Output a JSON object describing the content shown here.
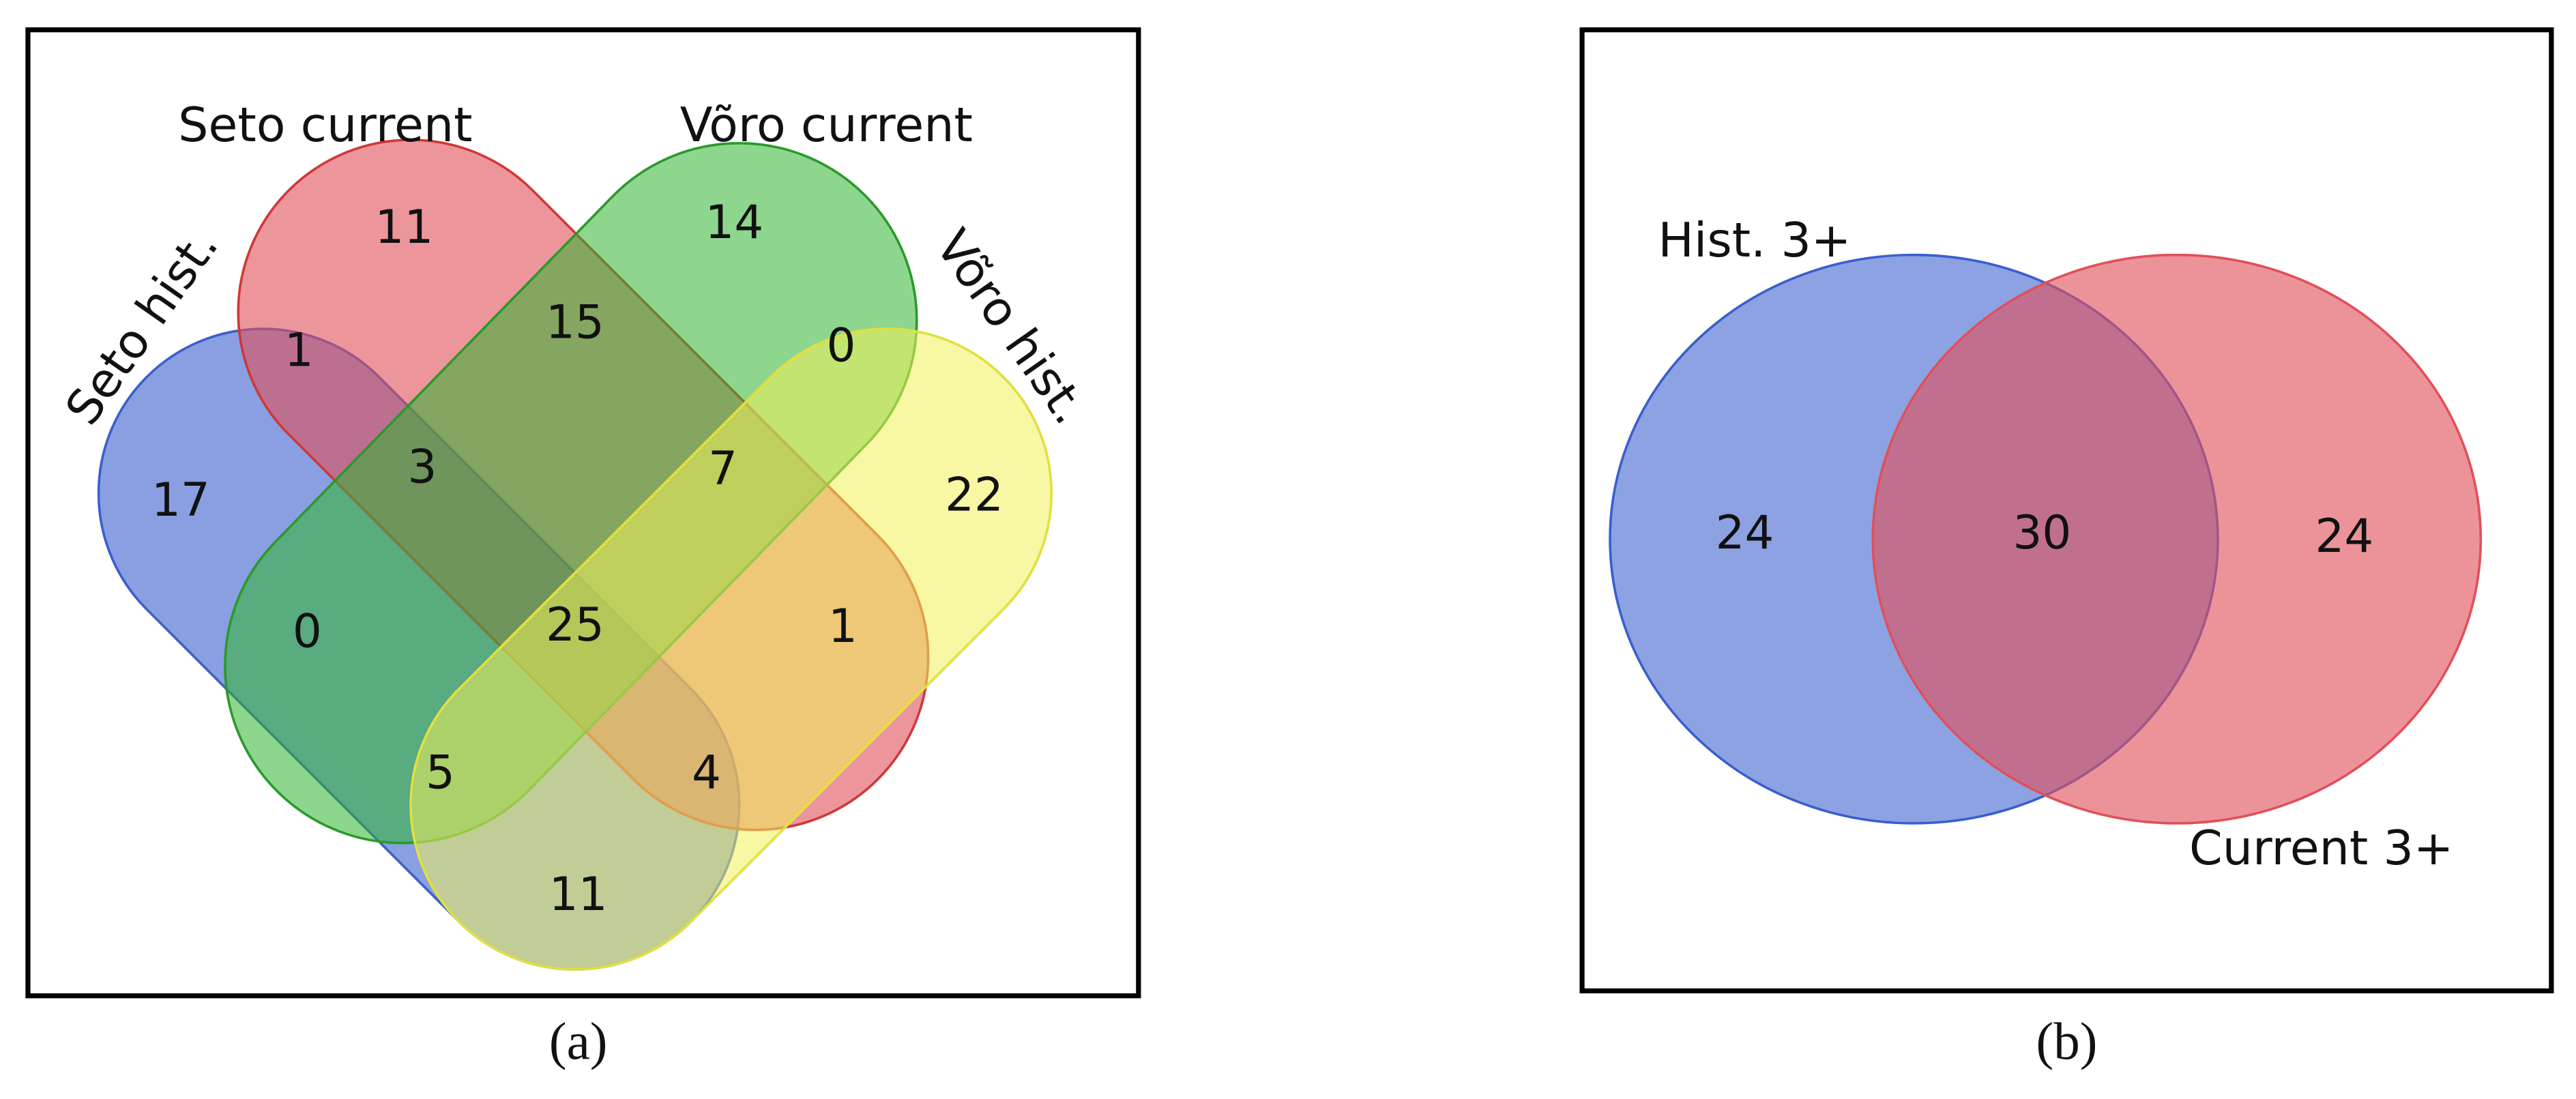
{
  "panel_a": {
    "set_labels": [
      "Seto hist.",
      "Seto current",
      "Võro current",
      "Võro hist."
    ],
    "regions": [
      "11",
      "14",
      "1",
      "15",
      "0",
      "17",
      "3",
      "7",
      "22",
      "25",
      "0",
      "1",
      "5",
      "4",
      "11"
    ],
    "caption": "(a)"
  },
  "panel_b": {
    "set_labels": [
      "Hist. 3+",
      "Current 3+"
    ],
    "regions": [
      "24",
      "30",
      "24"
    ],
    "caption": "(b)"
  }
}
